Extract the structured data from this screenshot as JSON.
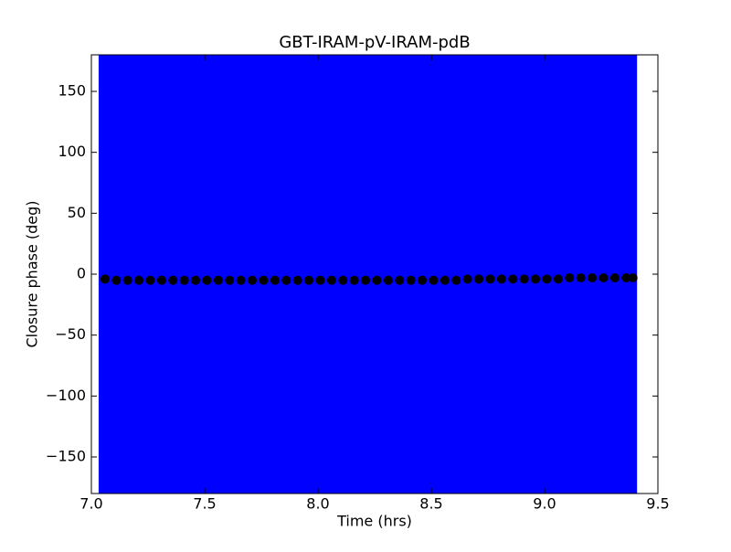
{
  "chart_data": {
    "type": "errorbar_scatter",
    "title": "GBT-IRAM-pV-IRAM-pdB",
    "xlabel": "Time (hrs)",
    "ylabel": "Closure phase (deg)",
    "xlim": [
      7.0,
      9.5
    ],
    "ylim": [
      -180,
      180
    ],
    "xticks": [
      {
        "value": 7.0,
        "label": "7.0"
      },
      {
        "value": 7.5,
        "label": "7.5"
      },
      {
        "value": 8.0,
        "label": "8.0"
      },
      {
        "value": 8.5,
        "label": "8.5"
      },
      {
        "value": 9.0,
        "label": "9.0"
      },
      {
        "value": 9.5,
        "label": "9.5"
      }
    ],
    "yticks": [
      {
        "value": -150,
        "label": "−150"
      },
      {
        "value": -100,
        "label": "−100"
      },
      {
        "value": -50,
        "label": "−50"
      },
      0,
      50,
      100,
      150
    ],
    "color": "#000000",
    "error_color": "#0000ff",
    "x": [
      7.06,
      7.11,
      7.16,
      7.21,
      7.26,
      7.31,
      7.36,
      7.41,
      7.46,
      7.51,
      7.56,
      7.61,
      7.66,
      7.71,
      7.76,
      7.81,
      7.86,
      7.91,
      7.96,
      8.01,
      8.06,
      8.11,
      8.16,
      8.21,
      8.26,
      8.31,
      8.36,
      8.41,
      8.46,
      8.51,
      8.56,
      8.61,
      8.66,
      8.71,
      8.76,
      8.81,
      8.86,
      8.91,
      8.96,
      9.01,
      9.06,
      9.11,
      9.16,
      9.21,
      9.26,
      9.31,
      9.36,
      9.39
    ],
    "values": [
      -4,
      -5,
      -5,
      -5,
      -5,
      -5,
      -5,
      -5,
      -5,
      -5,
      -5,
      -5,
      -5,
      -5,
      -5,
      -5,
      -5,
      -5,
      -5,
      -5,
      -5,
      -5,
      -5,
      -5,
      -5,
      -5,
      -5,
      -5,
      -5,
      -5,
      -5,
      -5,
      -4,
      -4,
      -4,
      -4,
      -4,
      -4,
      -4,
      -4,
      -4,
      -3,
      -3,
      -3,
      -3,
      -3,
      -3,
      -3
    ],
    "errors": [
      200,
      200,
      200,
      200,
      200,
      200,
      200,
      200,
      200,
      200,
      200,
      200,
      200,
      200,
      200,
      200,
      200,
      200,
      200,
      200,
      200,
      200,
      200,
      200,
      200,
      200,
      200,
      200,
      200,
      200,
      200,
      200,
      200,
      200,
      200,
      200,
      200,
      200,
      200,
      200,
      200,
      200,
      200,
      200,
      200,
      200,
      200,
      200
    ]
  }
}
